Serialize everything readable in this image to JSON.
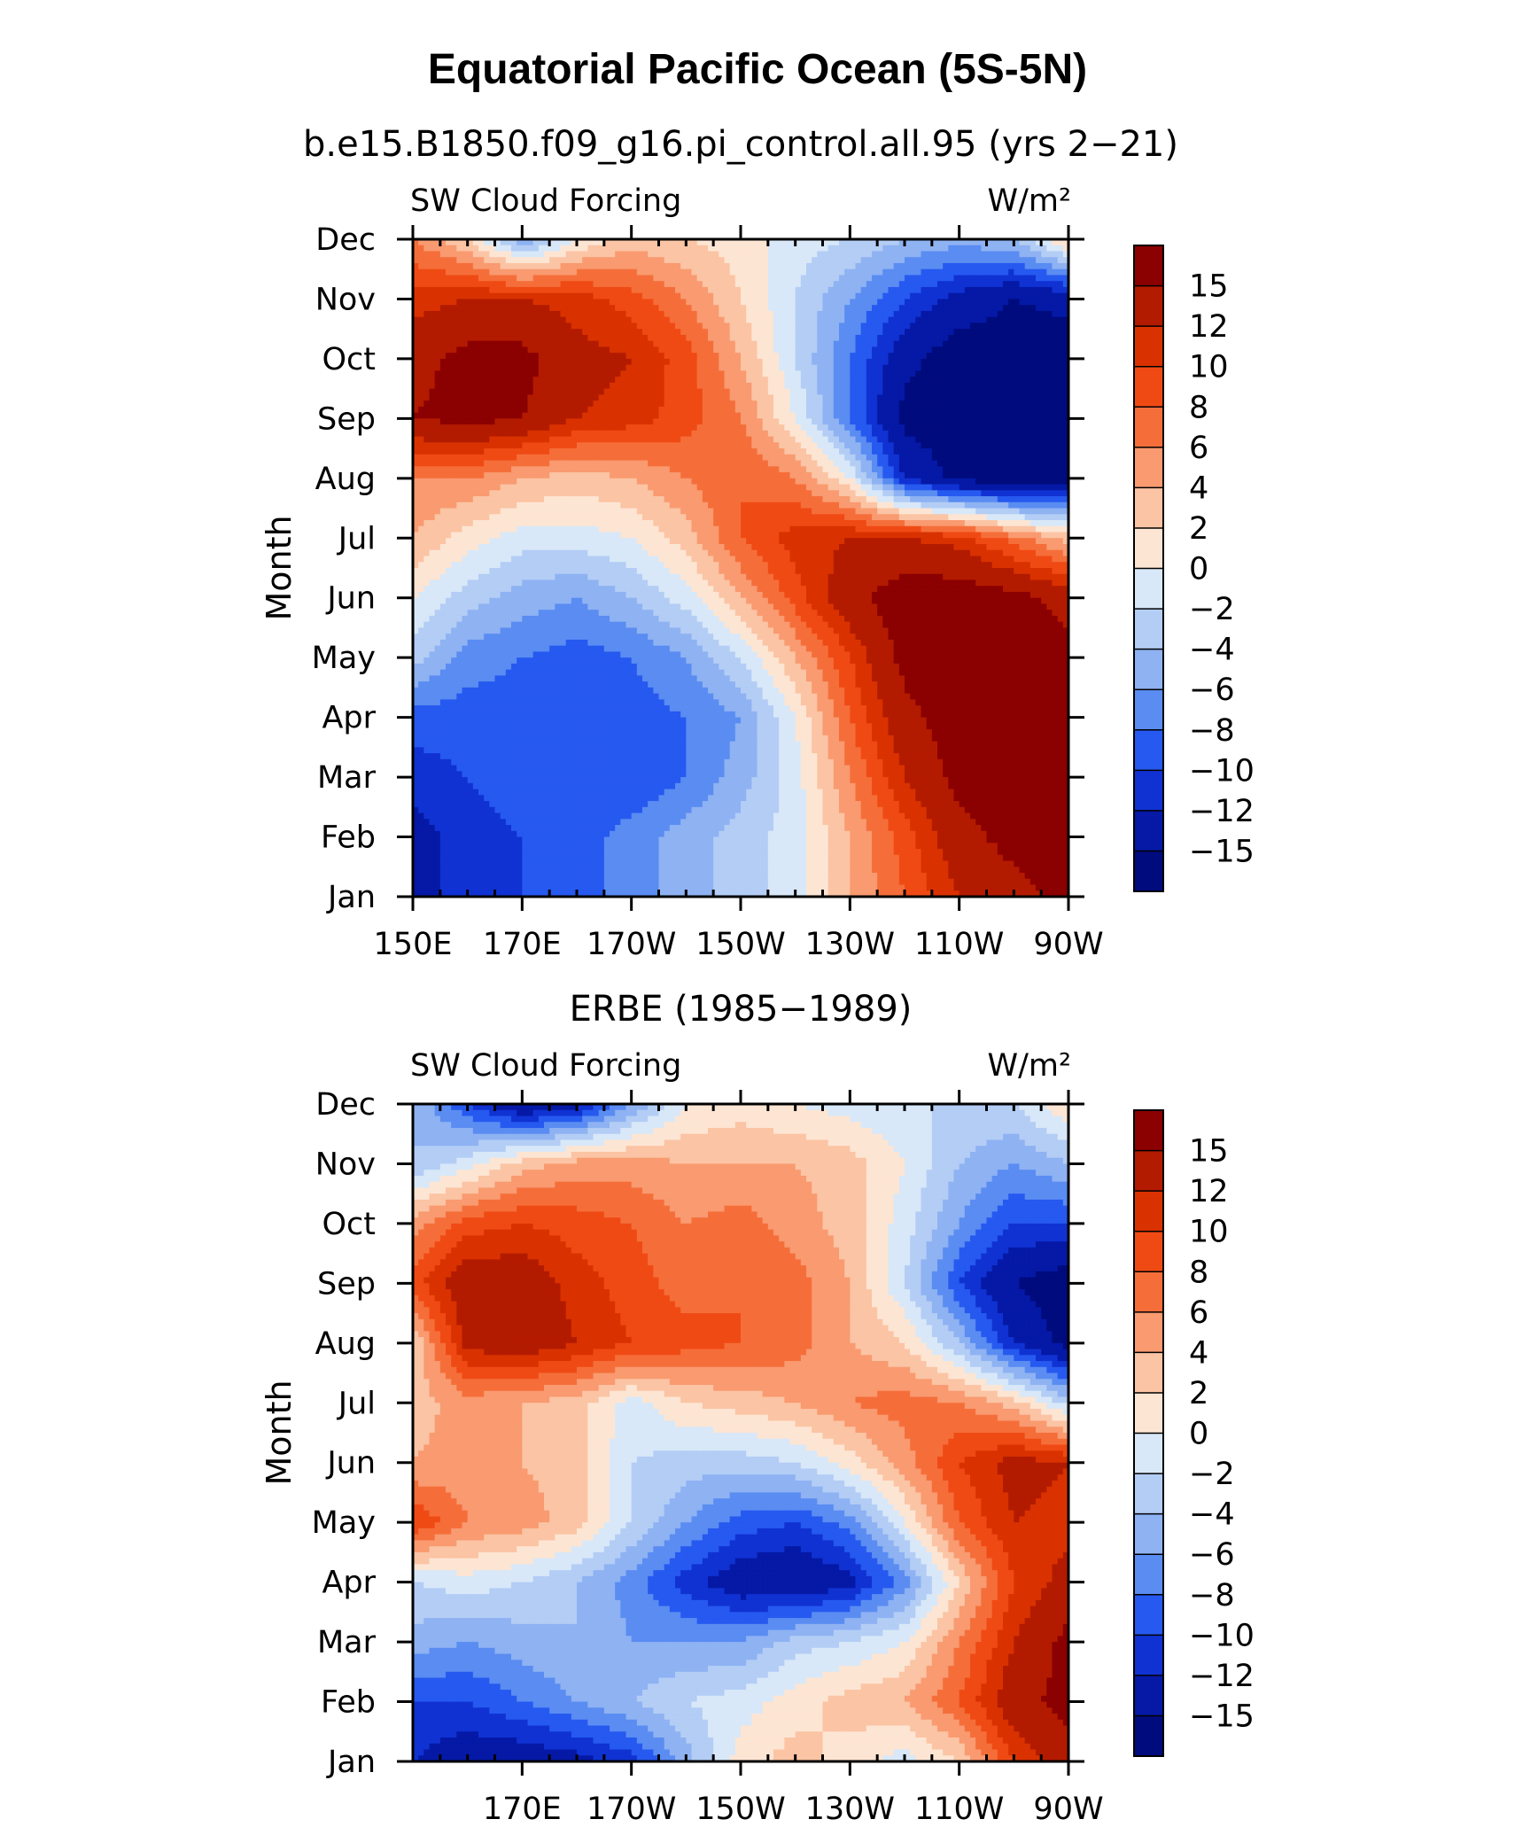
{
  "title": "Equatorial Pacific Ocean (5S-5N)",
  "panels": [
    {
      "panel_title": "b.e15.B1850.f09_g16.pi_control.all.95 (yrs 2−21)",
      "left_string": "SW Cloud Forcing",
      "right_string": "W/m²",
      "ylabel": "Month",
      "xtick_labels": [
        "150E",
        "170E",
        "170W",
        "150W",
        "130W",
        "110W",
        "90W"
      ],
      "xtick_values": [
        150,
        170,
        190,
        210,
        230,
        250,
        270
      ]
    },
    {
      "panel_title": "ERBE (1985−1989)",
      "left_string": "SW Cloud Forcing",
      "right_string": "W/m²",
      "ylabel": "Month",
      "xtick_labels": [
        "170E",
        "170W",
        "150W",
        "130W",
        "110W",
        "90W"
      ],
      "xtick_values": [
        170,
        190,
        210,
        230,
        250,
        270
      ]
    }
  ],
  "colorbar": {
    "labels": [
      "15",
      "12",
      "10",
      "8",
      "6",
      "4",
      "2",
      "0",
      "−2",
      "−4",
      "−6",
      "−8",
      "−10",
      "−12",
      "−15"
    ],
    "colors": [
      "#8b0000",
      "#b31b00",
      "#d93200",
      "#f04a14",
      "#f56e3a",
      "#f99a70",
      "#fbc4a4",
      "#fde5d3",
      "#d8e8f8",
      "#b3cdf5",
      "#8eb2f2",
      "#5a8cf2",
      "#2659ef",
      "#1032d2",
      "#0519a6",
      "#000b7d"
    ]
  },
  "chart_data": [
    {
      "type": "heatmap",
      "title": "b.e15.B1850.f09_g16.pi_control.all.95 (yrs 2−21)",
      "variable": "SW Cloud Forcing",
      "units": "W/m²",
      "xlabel": "",
      "ylabel": "Month",
      "x": [
        150,
        160,
        170,
        180,
        190,
        200,
        210,
        220,
        230,
        240,
        250,
        260,
        270
      ],
      "y": [
        "Jan",
        "Feb",
        "Mar",
        "Apr",
        "May",
        "Jun",
        "Jul",
        "Aug",
        "Sep",
        "Oct",
        "Nov",
        "Dec"
      ],
      "xlim": [
        150,
        270
      ],
      "values": [
        [
          -12,
          -12,
          -10,
          -9,
          -7,
          -5,
          -3,
          -1,
          4,
          8,
          12,
          14,
          16
        ],
        [
          -13,
          -11,
          -10,
          -9,
          -7,
          -5,
          -3,
          -1,
          4,
          9,
          14,
          16,
          17
        ],
        [
          -11,
          -10,
          -9,
          -10,
          -10,
          -8,
          -5,
          -1,
          6,
          12,
          16,
          17,
          17
        ],
        [
          -9,
          -9,
          -9,
          -9,
          -9,
          -8,
          -6,
          0,
          8,
          14,
          17,
          17,
          17
        ],
        [
          -3,
          -7,
          -8,
          -9,
          -8,
          -6,
          -2,
          4,
          10,
          16,
          17,
          17,
          16
        ],
        [
          0,
          -3,
          -5,
          -6,
          -4,
          -1,
          4,
          9,
          14,
          17,
          17,
          16,
          14
        ],
        [
          4,
          1,
          -1,
          -1,
          0,
          3,
          8,
          11,
          12,
          12,
          11,
          7,
          3
        ],
        [
          6,
          6,
          4,
          3,
          4,
          6,
          8,
          6,
          0,
          -12,
          -16,
          -17,
          -17
        ],
        [
          15,
          16,
          15,
          12,
          11,
          9,
          6,
          0,
          -8,
          -16,
          -17,
          -17,
          -17
        ],
        [
          14,
          16,
          16,
          13,
          12,
          9,
          4,
          -2,
          -8,
          -14,
          -17,
          -17,
          -17
        ],
        [
          11,
          12,
          12,
          11,
          9,
          6,
          2,
          -2,
          -6,
          -10,
          -13,
          -15,
          -14
        ],
        [
          6,
          2,
          -6,
          0,
          3,
          2,
          1,
          -1,
          -2,
          -4,
          -5,
          -4,
          3
        ]
      ],
      "levels": [
        -15,
        -12,
        -10,
        -8,
        -6,
        -4,
        -2,
        0,
        2,
        4,
        6,
        8,
        10,
        12,
        15
      ]
    },
    {
      "type": "heatmap",
      "title": "ERBE (1985−1989)",
      "variable": "SW Cloud Forcing",
      "units": "W/m²",
      "xlabel": "",
      "ylabel": "Month",
      "x": [
        150,
        160,
        170,
        180,
        190,
        200,
        210,
        220,
        230,
        240,
        250,
        260,
        270
      ],
      "y": [
        "Jan",
        "Feb",
        "Mar",
        "Apr",
        "May",
        "Jun",
        "Jul",
        "Aug",
        "Sep",
        "Oct",
        "Nov",
        "Dec"
      ],
      "xlim": [
        150,
        270
      ],
      "values": [
        [
          -12,
          -14,
          -14,
          -13,
          -11,
          -5,
          1,
          3,
          1,
          -1,
          2,
          10,
          14
        ],
        [
          -10,
          -10,
          -8,
          -6,
          -4,
          -2,
          -1,
          1,
          3,
          4,
          8,
          14,
          16
        ],
        [
          -5,
          -6,
          -5,
          -4,
          -6,
          -6,
          -6,
          -3,
          -2,
          0,
          6,
          12,
          16
        ],
        [
          -2,
          -1,
          -2,
          -4,
          -7,
          -11,
          -14,
          -15,
          -13,
          -7,
          2,
          10,
          13
        ],
        [
          10,
          6,
          5,
          3,
          -2,
          -6,
          -9,
          -10,
          -7,
          0,
          8,
          12,
          11
        ],
        [
          4,
          5,
          4,
          3,
          -2,
          -3,
          -3,
          -2,
          1,
          5,
          10,
          13,
          12
        ],
        [
          3,
          5,
          4,
          3,
          -1,
          2,
          3,
          4,
          6,
          7,
          6,
          3,
          -3
        ],
        [
          2,
          13,
          14,
          12,
          10,
          9,
          8,
          7,
          4,
          2,
          -4,
          -12,
          -16
        ],
        [
          9,
          14,
          14,
          11,
          9,
          7,
          8,
          7,
          4,
          -2,
          -10,
          -15,
          -17
        ],
        [
          5,
          9,
          10,
          9,
          8,
          6,
          7,
          5,
          3,
          -1,
          -6,
          -10,
          -10
        ],
        [
          -4,
          -1,
          3,
          5,
          5,
          4,
          4,
          4,
          3,
          0,
          -4,
          -6,
          -4
        ],
        [
          -4,
          -10,
          -15,
          -13,
          -6,
          0,
          1,
          0,
          -1,
          -2,
          -2,
          -2,
          2
        ]
      ],
      "levels": [
        -15,
        -12,
        -10,
        -8,
        -6,
        -4,
        -2,
        0,
        2,
        4,
        6,
        8,
        10,
        12,
        15
      ]
    }
  ]
}
